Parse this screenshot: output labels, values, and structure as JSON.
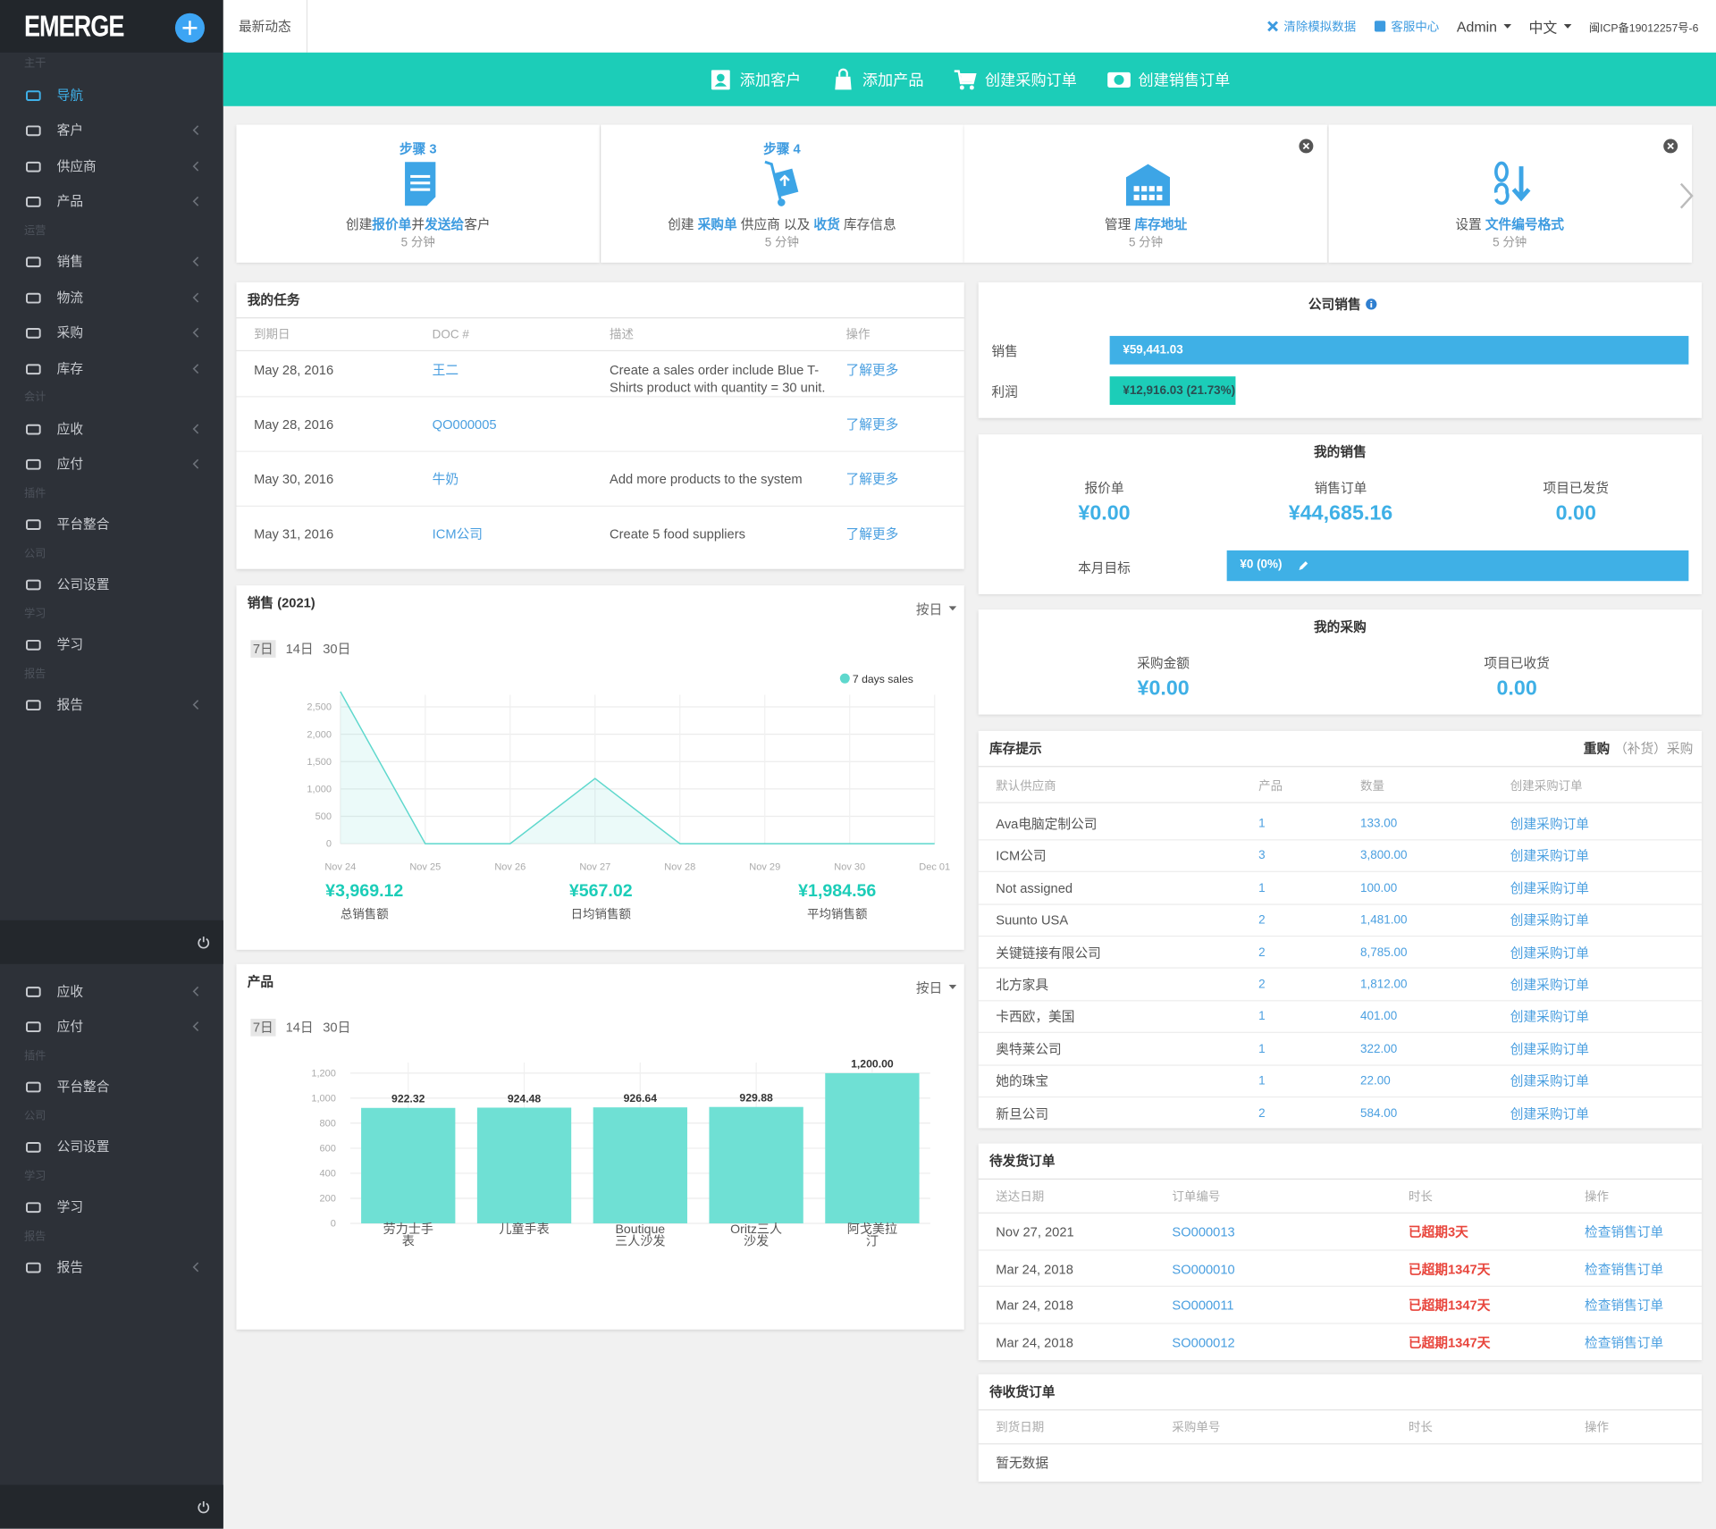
{
  "sidebar": {
    "logo": "EMERGE",
    "menu": [
      {
        "heading": "主干"
      },
      {
        "label": "导航",
        "active": true
      },
      {
        "label": "客户",
        "arrow": true
      },
      {
        "label": "供应商",
        "arrow": true
      },
      {
        "label": "产品",
        "arrow": true
      },
      {
        "heading": "运营"
      },
      {
        "label": "销售",
        "arrow": true
      },
      {
        "label": "物流",
        "arrow": true
      },
      {
        "label": "采购",
        "arrow": true
      },
      {
        "label": "库存",
        "arrow": true
      },
      {
        "heading": "会计"
      },
      {
        "label": "应收",
        "arrow": true
      },
      {
        "label": "应付",
        "arrow": true
      },
      {
        "heading": "插件"
      },
      {
        "label": "平台整合"
      },
      {
        "heading": "公司"
      },
      {
        "label": "公司设置"
      },
      {
        "heading": "学习"
      },
      {
        "label": "学习"
      },
      {
        "heading": "报告"
      },
      {
        "label": "报告",
        "arrow": true
      }
    ],
    "menu_repeat": [
      {
        "label": "应收",
        "arrow": true
      },
      {
        "label": "应付",
        "arrow": true
      },
      {
        "heading": "插件"
      },
      {
        "label": "平台整合"
      },
      {
        "heading": "公司"
      },
      {
        "label": "公司设置"
      },
      {
        "heading": "学习"
      },
      {
        "label": "学习"
      },
      {
        "heading": "报告"
      },
      {
        "label": "报告",
        "arrow": true
      }
    ]
  },
  "topbar": {
    "tab": "最新动态",
    "links": [
      "清除模拟数据",
      "客服中心"
    ],
    "menus": [
      "Admin",
      "中文"
    ],
    "icp": "闽ICP备19012257号-6"
  },
  "quick_actions": [
    "添加客户",
    "添加产品",
    "创建采购订单",
    "创建销售订单"
  ],
  "steps": [
    {
      "step": "步骤 3",
      "parts": [
        {
          "text": "创建"
        },
        {
          "text": "报价单",
          "link": true
        },
        {
          "text": "并"
        },
        {
          "text": "发送给",
          "link": true
        },
        {
          "text": "客户"
        }
      ],
      "time": "5 分钟"
    },
    {
      "step": "步骤 4",
      "parts": [
        {
          "text": "创建 "
        },
        {
          "text": "采购单",
          "link": true
        },
        {
          "text": " 供应商 以及 "
        },
        {
          "text": "收货",
          "link": true
        },
        {
          "text": " 库存信息"
        }
      ],
      "time": "5 分钟"
    },
    {
      "closable": true,
      "parts": [
        {
          "text": "管理 "
        },
        {
          "text": "库存地址",
          "link": true
        }
      ],
      "time": "5 分钟"
    },
    {
      "closable": true,
      "parts": [
        {
          "text": "设置 "
        },
        {
          "text": "文件编号格式",
          "link": true
        }
      ],
      "time": "5 分钟"
    }
  ],
  "tasks": {
    "title": "我的任务",
    "columns": [
      "到期日",
      "DOC #",
      "描述",
      "操作"
    ],
    "rows": [
      [
        "May 28, 2016",
        "王二",
        "Create a sales order include Blue T-Shirts product with quantity = 30 unit.",
        "了解更多"
      ],
      [
        "May 28, 2016",
        "QO000005",
        null,
        "了解更多"
      ],
      [
        "May 30, 2016",
        "牛奶",
        "Add more products to the system",
        "了解更多"
      ],
      [
        "May 31, 2016",
        "ICM公司",
        "Create 5 food suppliers",
        "了解更多"
      ]
    ]
  },
  "sales_chart": {
    "type": "area",
    "title": "销售 (2021)",
    "period": "按日",
    "ranges": [
      "7日",
      "14日",
      "30日"
    ],
    "categories": [
      "Nov 24",
      "Nov 25",
      "Nov 26",
      "Nov 27",
      "Nov 28",
      "Nov 29",
      "Nov 30",
      "Dec 01"
    ],
    "series": [
      {
        "name": "7 days sales",
        "color": "#5ed8cd",
        "values": [
          2780,
          0,
          0,
          1190,
          0,
          0,
          0,
          0
        ]
      }
    ],
    "ylim": [
      0,
      2800
    ],
    "yticks": [
      0,
      500,
      {
        "value": 1000,
        "label": "1,000"
      },
      {
        "value": 1500,
        "label": "1,500"
      },
      {
        "value": 2000,
        "label": "2,000"
      },
      {
        "value": 2500,
        "label": "2,500"
      }
    ],
    "grid": true,
    "stats": [
      {
        "value": "¥3,969.12",
        "label": "总销售额"
      },
      {
        "value": "¥567.02",
        "label": "日均销售额"
      },
      {
        "value": "¥1,984.56",
        "label": "平均销售额"
      }
    ]
  },
  "product_chart": {
    "type": "bar",
    "title": "产品",
    "period": "按日",
    "ranges": [
      "7日",
      "14日",
      "30日"
    ],
    "categories": [
      "劳力士手表",
      "儿童手表",
      "Boutique 三人沙发",
      "Oritz三人沙发",
      "阿戈美拉汀"
    ],
    "values": [
      922.32,
      924.48,
      926.64,
      929.88,
      1200
    ],
    "value_labels": [
      "922.32",
      "924.48",
      "926.64",
      "929.88",
      "1,200.00"
    ],
    "color": "#6fe0d4",
    "ylim": [
      0,
      1250
    ],
    "yticks": [
      0,
      200,
      400,
      600,
      800,
      {
        "value": 1000,
        "label": "1,000"
      },
      {
        "value": 1200,
        "label": "1,200"
      }
    ],
    "grid": true
  },
  "company_sales": {
    "title": "公司销售",
    "rows": [
      {
        "label": "销售",
        "value": 59441.03,
        "value_label": "¥59,441.03",
        "color": "#3fb0e6"
      },
      {
        "label": "利润",
        "value": 12916.03,
        "value_label": "¥12,916.03 (21.73%)",
        "color": "#1ccdb8"
      }
    ]
  },
  "my_sales": {
    "title": "我的销售",
    "metrics": [
      {
        "label": "报价单",
        "value": "¥0.00"
      },
      {
        "label": "销售订单",
        "value": "¥44,685.16"
      },
      {
        "label": "项目已发货",
        "value": "0.00"
      }
    ],
    "target_label": "本月目标",
    "target": "¥0 (0%)"
  },
  "my_purchase": {
    "title": "我的采购",
    "metrics": [
      {
        "label": "采购金额",
        "value": "¥0.00"
      },
      {
        "label": "项目已收货",
        "value": "0.00"
      }
    ]
  },
  "inventory": {
    "title": "库存提示",
    "filters": [
      "重购",
      "（补货）",
      "采购"
    ],
    "columns": [
      "默认供应商",
      "产品",
      "数量",
      "创建采购订单"
    ],
    "rows": [
      [
        "Ava电脑定制公司",
        "1",
        "133.00",
        "创建采购订单"
      ],
      [
        "ICM公司",
        "3",
        "3,800.00",
        "创建采购订单"
      ],
      [
        "Not assigned",
        "1",
        "100.00",
        "创建采购订单"
      ],
      [
        "Suunto USA",
        "2",
        "1,481.00",
        "创建采购订单"
      ],
      [
        "关键链接有限公司",
        "2",
        "8,785.00",
        "创建采购订单"
      ],
      [
        "北方家具",
        "2",
        "1,812.00",
        "创建采购订单"
      ],
      [
        "卡西欧，美国",
        "1",
        "401.00",
        "创建采购订单"
      ],
      [
        "奥特莱公司",
        "1",
        "322.00",
        "创建采购订单"
      ],
      [
        "她的珠宝",
        "1",
        "22.00",
        "创建采购订单"
      ],
      [
        "新旦公司",
        "2",
        "584.00",
        "创建采购订单"
      ]
    ]
  },
  "pending_shipments": {
    "title": "待发货订单",
    "columns": [
      "送达日期",
      "订单编号",
      "时长",
      "操作"
    ],
    "rows": [
      [
        "Nov 27, 2021",
        "SO000013",
        "已超期3天",
        "检查销售订单"
      ],
      [
        "Mar 24, 2018",
        "SO000010",
        "已超期1347天",
        "检查销售订单"
      ],
      [
        "Mar 24, 2018",
        "SO000011",
        "已超期1347天",
        "检查销售订单"
      ],
      [
        "Mar 24, 2018",
        "SO000012",
        "已超期1347天",
        "检查销售订单"
      ]
    ]
  },
  "pending_receipts": {
    "title": "待收货订单",
    "columns": [
      "到货日期",
      "采购单号",
      "时长",
      "操作"
    ],
    "empty": "暂无数据"
  }
}
